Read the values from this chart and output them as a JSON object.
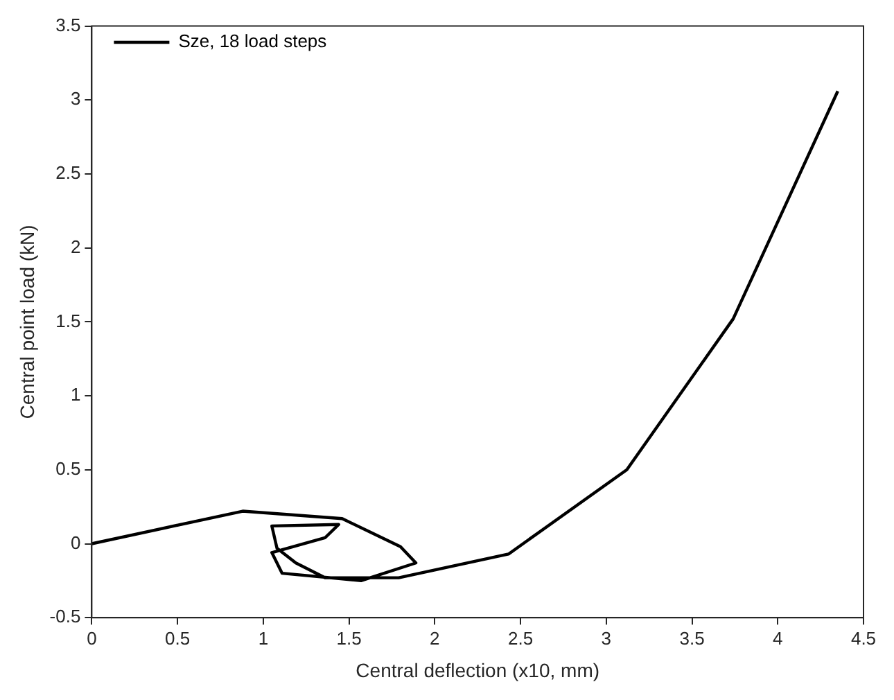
{
  "chart_data": {
    "type": "line",
    "xlabel": "Central deflection (x10, mm)",
    "ylabel": "Central point load (kN)",
    "xlim": [
      0,
      4.5
    ],
    "xticks": [
      0,
      0.5,
      1,
      1.5,
      2,
      2.5,
      3,
      3.5,
      4,
      4.5
    ],
    "ylim": [
      -0.5,
      3.5
    ],
    "yticks": [
      -0.5,
      0,
      0.5,
      1,
      1.5,
      2,
      2.5,
      3,
      3.5
    ],
    "grid": false,
    "legend": "top left",
    "marker": "none",
    "line_style": "solid",
    "series": [
      {
        "name": "Sze, 18 load steps",
        "color": "#000000",
        "x": [
          0,
          0.88,
          1.46,
          1.8,
          1.89,
          1.57,
          1.11,
          1.05,
          1.36,
          1.44,
          1.05,
          1.08,
          1.19,
          1.36,
          1.79,
          2.43,
          3.12,
          3.74,
          4.35
        ],
        "values": [
          0,
          0.22,
          0.17,
          -0.02,
          -0.13,
          -0.25,
          -0.2,
          -0.06,
          0.04,
          0.13,
          0.12,
          -0.03,
          -0.13,
          -0.23,
          -0.23,
          -0.07,
          0.5,
          1.52,
          3.06
        ]
      }
    ]
  }
}
